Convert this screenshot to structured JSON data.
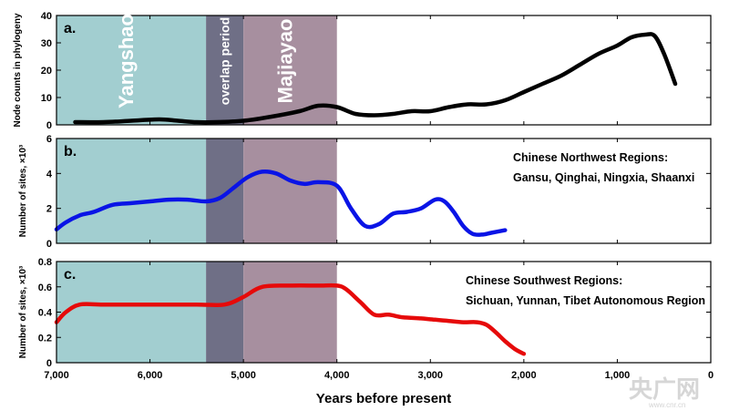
{
  "colors": {
    "yangshao_band": "#a2ced0",
    "overlap_band": "#6f6f86",
    "majiayao_band": "#a78f9f",
    "series_a": "#000000",
    "series_b": "#0a14e6",
    "series_c": "#e60a0a"
  },
  "periods": [
    {
      "name": "Yangshao",
      "start": 7000,
      "end": 5400
    },
    {
      "name": "overlap period",
      "start": 5400,
      "end": 5000
    },
    {
      "name": "Majiayao",
      "start": 5000,
      "end": 4000
    }
  ],
  "watermark": {
    "main": "央广网",
    "sub": "www.cnr.cn"
  },
  "chart_data": [
    {
      "type": "line",
      "panel_label": "a.",
      "ylabel": "Node counts in phylogeny",
      "xlim": [
        7000,
        0
      ],
      "ylim": [
        0,
        40
      ],
      "yticks": [
        0,
        10,
        20,
        30,
        40
      ],
      "ytick_labels": [
        "0",
        "10",
        "20",
        "30",
        "40"
      ],
      "series": [
        {
          "color": "#000000",
          "x": [
            6800,
            6500,
            6200,
            5900,
            5700,
            5500,
            5300,
            5000,
            4700,
            4400,
            4200,
            4000,
            3800,
            3600,
            3400,
            3200,
            3000,
            2800,
            2600,
            2400,
            2200,
            2000,
            1800,
            1600,
            1400,
            1200,
            1000,
            850,
            700,
            600,
            500,
            380
          ],
          "y": [
            1,
            1,
            1.5,
            2,
            1.5,
            1,
            1,
            1.5,
            3,
            5,
            7,
            6.5,
            4,
            3.5,
            4,
            5,
            5,
            6.5,
            7.5,
            7.5,
            9,
            12,
            15,
            18,
            22,
            26,
            29,
            32,
            33,
            32.5,
            26,
            15
          ]
        }
      ]
    },
    {
      "type": "line",
      "panel_label": "b.",
      "ylabel": "Number of sites, ×10³",
      "xlim": [
        7000,
        0
      ],
      "ylim": [
        0,
        6
      ],
      "yticks": [
        0,
        2,
        4,
        6
      ],
      "ytick_labels": [
        "0",
        "2",
        "4",
        "6"
      ],
      "annotation": [
        "Chinese Northwest Regions:",
        "Gansu, Qinghai, Ningxia, Shaanxi"
      ],
      "series": [
        {
          "color": "#0a14e6",
          "x": [
            7000,
            6900,
            6750,
            6600,
            6400,
            6200,
            6000,
            5800,
            5600,
            5400,
            5250,
            5100,
            4950,
            4800,
            4650,
            4500,
            4350,
            4200,
            4000,
            3850,
            3700,
            3550,
            3400,
            3250,
            3100,
            2950,
            2850,
            2750,
            2650,
            2550,
            2450,
            2350,
            2200
          ],
          "y": [
            0.8,
            1.2,
            1.6,
            1.8,
            2.2,
            2.3,
            2.4,
            2.5,
            2.5,
            2.4,
            2.6,
            3.2,
            3.8,
            4.1,
            4.0,
            3.6,
            3.4,
            3.5,
            3.3,
            2.0,
            1.0,
            1.1,
            1.7,
            1.8,
            2.0,
            2.5,
            2.4,
            1.8,
            1.0,
            0.55,
            0.5,
            0.6,
            0.75
          ]
        }
      ]
    },
    {
      "type": "line",
      "panel_label": "c.",
      "ylabel": "Number of sites, ×10³",
      "xlim": [
        7000,
        0
      ],
      "ylim": [
        0,
        0.8
      ],
      "yticks": [
        0,
        0.2,
        0.4,
        0.6,
        0.8
      ],
      "ytick_labels": [
        "0",
        "0.2",
        "0.4",
        "0.6",
        "0.8"
      ],
      "annotation": [
        "Chinese Southwest Regions:",
        "Sichuan, Yunnan, Tibet Autonomous Region"
      ],
      "series": [
        {
          "color": "#e60a0a",
          "x": [
            7000,
            6900,
            6750,
            6500,
            6000,
            5500,
            5200,
            5000,
            4800,
            4500,
            4200,
            4000,
            3900,
            3750,
            3600,
            3450,
            3300,
            3100,
            2950,
            2800,
            2650,
            2500,
            2400,
            2300,
            2200,
            2100,
            2000
          ],
          "y": [
            0.32,
            0.4,
            0.46,
            0.46,
            0.46,
            0.46,
            0.46,
            0.52,
            0.6,
            0.61,
            0.61,
            0.61,
            0.58,
            0.48,
            0.38,
            0.38,
            0.36,
            0.35,
            0.34,
            0.33,
            0.32,
            0.32,
            0.3,
            0.24,
            0.17,
            0.11,
            0.07
          ]
        }
      ]
    }
  ],
  "xaxis": {
    "label": "Years before present",
    "ticks": [
      7000,
      6000,
      5000,
      4000,
      3000,
      2000,
      1000,
      0
    ],
    "tick_labels": [
      "7,000",
      "6,000",
      "5,000",
      "4,000",
      "3,000",
      "2,000",
      "1,000",
      "0"
    ]
  }
}
